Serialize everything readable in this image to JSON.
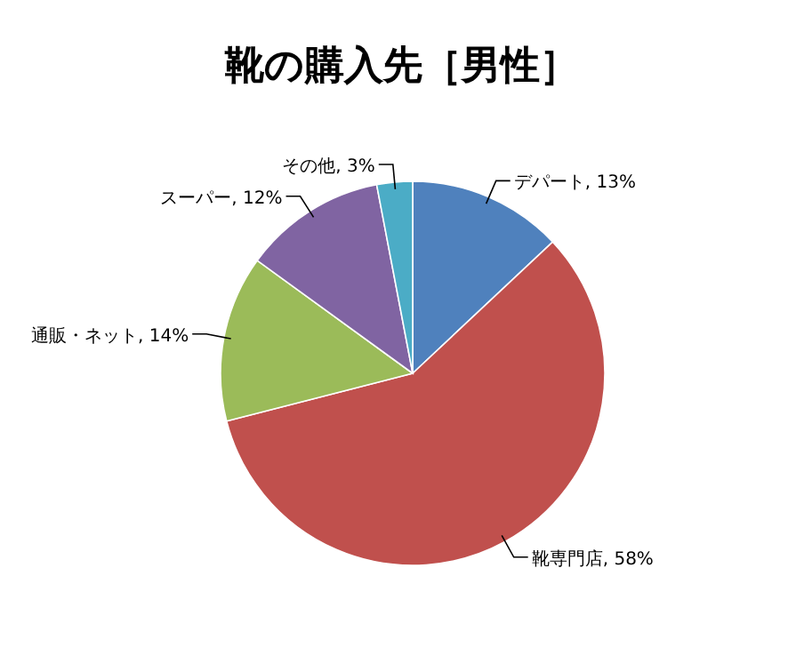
{
  "chart_data": {
    "type": "pie",
    "title": "靴の購入先［男性］",
    "categories": [
      "デパート",
      "靴専門店",
      "通販・ネット",
      "スーパー",
      "その他"
    ],
    "values": [
      13,
      58,
      14,
      12,
      3
    ],
    "colors": [
      "#4f81bd",
      "#c0504d",
      "#9bbb59",
      "#8064a2",
      "#4bacc6"
    ],
    "value_labels": [
      "13%",
      "58%",
      "14%",
      "12%",
      "3%"
    ]
  }
}
